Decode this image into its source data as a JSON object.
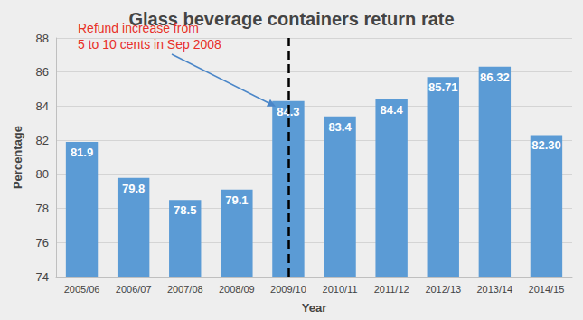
{
  "chart_data": {
    "type": "bar",
    "title": "Glass beverage containers return rate",
    "x_label": "Year",
    "y_label": "Percentage",
    "categories": [
      "2005/06",
      "2006/07",
      "2007/08",
      "2008/09",
      "2009/10",
      "2010/11",
      "2011/12",
      "2012/13",
      "2013/14",
      "2014/15"
    ],
    "values": [
      81.9,
      79.8,
      78.5,
      79.1,
      84.3,
      83.4,
      84.4,
      85.71,
      86.32,
      82.3
    ],
    "value_labels": [
      "81.9",
      "79.8",
      "78.5",
      "79.1",
      "84.3",
      "83.4",
      "84.4",
      "85.71",
      "86.32",
      "82.30"
    ],
    "color": "#5b9bd5",
    "ylim": [
      74,
      88
    ],
    "yticks": [
      74,
      76,
      78,
      80,
      82,
      84,
      86,
      88
    ],
    "grid": true,
    "data_labels": true,
    "annotations": [
      {
        "text": "Refund increase from\n5 to 10 cents in Sep 2008",
        "x": "2009/10",
        "color": "#e8312a",
        "line_color": "#000000"
      }
    ]
  }
}
